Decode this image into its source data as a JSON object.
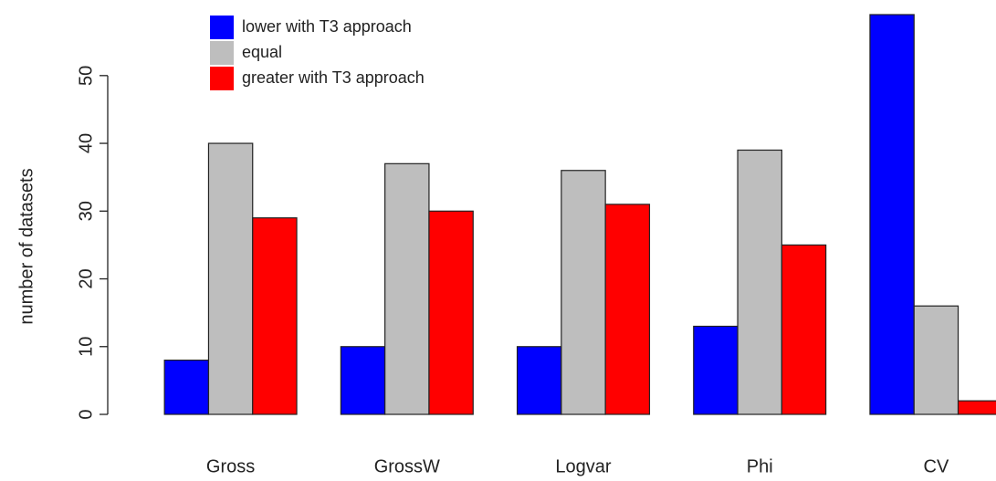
{
  "chart_data": {
    "type": "bar",
    "y_label": "number of datasets",
    "categories": [
      "Gross",
      "GrossW",
      "Logvar",
      "Phi",
      "CV"
    ],
    "series": [
      {
        "name": "lower with T3 approach",
        "color": "#0000ff",
        "values": [
          8,
          10,
          10,
          13,
          59
        ]
      },
      {
        "name": "equal",
        "color": "#bebebe",
        "values": [
          40,
          37,
          36,
          39,
          16
        ]
      },
      {
        "name": "greater with T3 approach",
        "color": "#ff0000",
        "values": [
          29,
          30,
          31,
          25,
          2
        ]
      }
    ],
    "ylim": [
      0,
      59
    ],
    "yticks": [
      0,
      10,
      20,
      30,
      40,
      50
    ],
    "legend": "top-left"
  }
}
